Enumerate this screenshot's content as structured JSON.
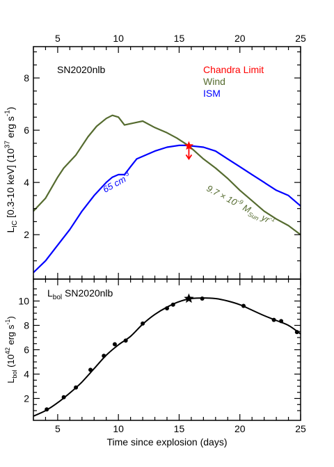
{
  "chart_data": [
    {
      "type": "line",
      "panel": "top",
      "label": "SN2020nlb",
      "xlim": [
        3,
        25
      ],
      "ylim": [
        0.3,
        9.2
      ],
      "ylabel": {
        "pre": "L",
        "sub": "IC",
        "mid": " [0.3-10 keV] (10",
        "sup": "37",
        "post": " erg s",
        "sup2": "-1",
        "end": ")"
      },
      "x_ticks_top": [
        5,
        10,
        15,
        20,
        25
      ],
      "y_ticks": [
        2,
        4,
        6,
        8
      ],
      "legend": [
        {
          "text": "Chandra Limit",
          "color": "#ff0000"
        },
        {
          "text": "Wind",
          "color": "#556b2f"
        },
        {
          "text": "ISM",
          "color": "#0000ff"
        }
      ],
      "series": [
        {
          "name": "Wind",
          "color": "#556b2f",
          "x": [
            3.0,
            4.0,
            5.0,
            5.5,
            6.5,
            7.5,
            8.2,
            9.0,
            9.5,
            10.0,
            10.5,
            11.0,
            11.5,
            12.0,
            13.0,
            14.0,
            14.8,
            15.8,
            17.0,
            18.0,
            19.0,
            20.0,
            21.0,
            22.0,
            23.0,
            24.0,
            25.0
          ],
          "y": [
            2.9,
            3.4,
            4.2,
            4.55,
            5.05,
            5.75,
            6.15,
            6.45,
            6.57,
            6.5,
            6.2,
            6.25,
            6.3,
            6.35,
            6.1,
            5.9,
            5.7,
            5.4,
            4.9,
            4.55,
            4.15,
            3.7,
            3.3,
            2.9,
            2.6,
            2.35,
            2.0
          ]
        },
        {
          "name": "ISM",
          "color": "#0000ff",
          "x": [
            3.0,
            4.0,
            5.0,
            6.0,
            7.0,
            8.0,
            9.0,
            9.5,
            10.0,
            10.5,
            11.0,
            11.5,
            12.0,
            13.0,
            14.0,
            15.0,
            15.5,
            16.0,
            17.0,
            18.0,
            19.0,
            20.0,
            21.0,
            22.0,
            23.0,
            24.0,
            25.0
          ],
          "y": [
            0.55,
            1.0,
            1.6,
            2.2,
            2.9,
            3.5,
            4.0,
            4.2,
            4.3,
            4.3,
            4.6,
            4.9,
            5.0,
            5.2,
            5.35,
            5.42,
            5.42,
            5.4,
            5.35,
            5.2,
            4.9,
            4.6,
            4.3,
            4.0,
            3.7,
            3.5,
            3.1
          ]
        }
      ],
      "limit_point": {
        "x": 15.8,
        "y": 5.4,
        "arrow_to": 4.9,
        "color": "#ff0000"
      },
      "annotations": [
        {
          "series": "ISM",
          "text": "65 cm",
          "sup": "-3",
          "x": 8.9,
          "y": 3.6,
          "angle": -29,
          "color": "#0000ff"
        },
        {
          "series": "Wind",
          "pre": "9.7 × 10",
          "sup": "-9",
          "mid": " M",
          "sub": "Sun",
          "post": " yr",
          "sup2": "-1",
          "x": 17.2,
          "y": 3.7,
          "angle": 28,
          "color": "#556b2f"
        }
      ]
    },
    {
      "type": "line",
      "panel": "bottom",
      "label": {
        "pre": "L",
        "sub": "bol",
        "post": " SN2020nlb"
      },
      "xlim": [
        3,
        25
      ],
      "ylim": [
        0.2,
        11.8
      ],
      "xlabel": "Time since explosion (days)",
      "ylabel": {
        "pre": "L",
        "sub": "bol",
        "mid": " (10",
        "sup": "42",
        "post": " erg s",
        "sup2": "-1",
        "end": ")"
      },
      "x_ticks": [
        5,
        10,
        15,
        20,
        25
      ],
      "y_ticks": [
        2,
        4,
        6,
        8,
        10
      ],
      "curve": {
        "x": [
          3.0,
          4.0,
          5.0,
          6.0,
          7.0,
          8.0,
          9.0,
          10.0,
          11.0,
          12.0,
          13.0,
          14.0,
          15.0,
          16.0,
          17.0,
          18.0,
          19.0,
          20.0,
          21.0,
          22.0,
          23.0,
          24.0,
          25.0
        ],
        "y": [
          0.55,
          1.0,
          1.65,
          2.45,
          3.35,
          4.45,
          5.55,
          6.4,
          7.1,
          8.1,
          8.9,
          9.5,
          9.95,
          10.2,
          10.25,
          10.2,
          10.0,
          9.7,
          9.25,
          8.8,
          8.4,
          8.0,
          7.3
        ]
      },
      "points": {
        "x": [
          4.1,
          5.5,
          6.5,
          7.7,
          8.8,
          9.7,
          10.6,
          12.0,
          14.0,
          14.5,
          16.9,
          20.3,
          22.8,
          23.4,
          24.7
        ],
        "y": [
          1.1,
          2.1,
          2.9,
          4.35,
          5.5,
          6.45,
          6.75,
          8.15,
          9.4,
          9.7,
          10.2,
          9.6,
          8.45,
          8.35,
          7.45
        ]
      },
      "star_point": {
        "x": 15.8,
        "y": 10.2
      }
    }
  ]
}
